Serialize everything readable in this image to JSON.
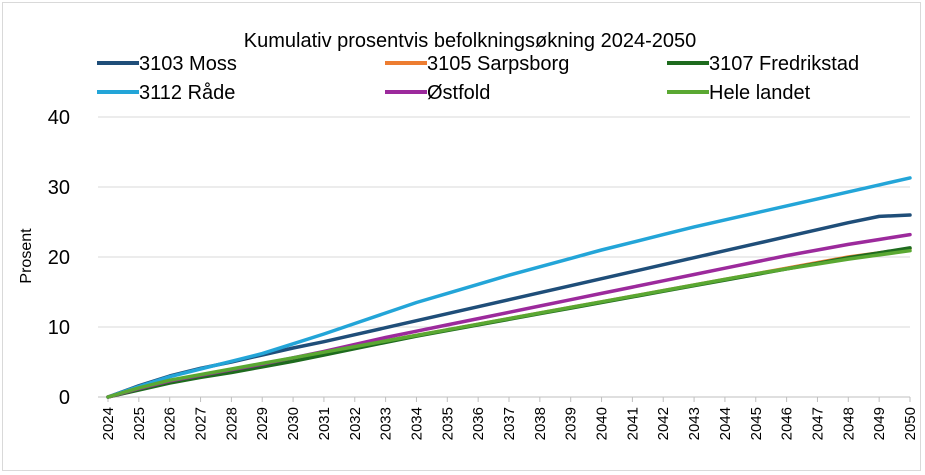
{
  "chart_data": {
    "type": "line",
    "title": "Kumulativ prosentvis befolkningsøkning 2024-2050",
    "xlabel": "",
    "ylabel": "Prosent",
    "ylim": [
      0,
      40
    ],
    "yticks": [
      "0",
      "10",
      "20",
      "30",
      "40"
    ],
    "grid": true,
    "legend_position": "top",
    "x": [
      "2024",
      "2025",
      "2026",
      "2027",
      "2028",
      "2029",
      "2030",
      "2031",
      "2032",
      "2033",
      "2034",
      "2035",
      "2036",
      "2037",
      "2038",
      "2039",
      "2040",
      "2041",
      "2042",
      "2043",
      "2044",
      "2045",
      "2046",
      "2047",
      "2048",
      "2049",
      "2050"
    ],
    "series": [
      {
        "name": "3103 Moss",
        "color": "#1f4e79",
        "values": [
          0,
          1.6,
          3.0,
          4.1,
          5.0,
          6.0,
          7.0,
          7.9,
          8.9,
          9.9,
          10.9,
          11.9,
          12.9,
          13.9,
          14.9,
          15.9,
          16.9,
          17.9,
          18.9,
          19.9,
          20.9,
          21.9,
          22.9,
          23.9,
          24.9,
          25.8,
          26.0
        ]
      },
      {
        "name": "3105 Sarpsborg",
        "color": "#ed7d31",
        "values": [
          0,
          1.1,
          2.2,
          3.0,
          3.7,
          4.5,
          5.3,
          6.2,
          7.1,
          8.0,
          8.8,
          9.6,
          10.4,
          11.2,
          12.0,
          12.8,
          13.6,
          14.4,
          15.2,
          16.0,
          16.8,
          17.6,
          18.4,
          19.2,
          20.0,
          20.6,
          21.2
        ]
      },
      {
        "name": "3107 Fredrikstad",
        "color": "#1e6b1e",
        "values": [
          0,
          1.0,
          2.0,
          2.8,
          3.5,
          4.3,
          5.1,
          6.0,
          6.9,
          7.8,
          8.7,
          9.5,
          10.3,
          11.1,
          11.9,
          12.7,
          13.5,
          14.3,
          15.1,
          15.9,
          16.7,
          17.5,
          18.3,
          19.1,
          19.9,
          20.6,
          21.3
        ]
      },
      {
        "name": "3112 Råde",
        "color": "#23a5d8",
        "values": [
          0,
          1.5,
          2.9,
          4.0,
          5.1,
          6.2,
          7.6,
          9.0,
          10.5,
          12.0,
          13.5,
          14.8,
          16.1,
          17.4,
          18.6,
          19.8,
          21.0,
          22.1,
          23.2,
          24.3,
          25.3,
          26.3,
          27.3,
          28.3,
          29.3,
          30.3,
          31.3
        ]
      },
      {
        "name": "Østfold",
        "color": "#9c2a9c",
        "values": [
          0,
          1.2,
          2.3,
          3.1,
          3.9,
          4.7,
          5.6,
          6.5,
          7.5,
          8.5,
          9.4,
          10.3,
          11.2,
          12.1,
          13.0,
          13.9,
          14.8,
          15.7,
          16.6,
          17.5,
          18.4,
          19.3,
          20.2,
          21.0,
          21.8,
          22.5,
          23.2
        ]
      },
      {
        "name": "Hele landet",
        "color": "#5aa832",
        "values": [
          0,
          1.3,
          2.4,
          3.2,
          4.0,
          4.8,
          5.6,
          6.4,
          7.2,
          8.0,
          8.8,
          9.6,
          10.4,
          11.2,
          12.0,
          12.8,
          13.6,
          14.4,
          15.2,
          16.0,
          16.8,
          17.6,
          18.3,
          19.0,
          19.7,
          20.3,
          20.9
        ]
      }
    ]
  }
}
